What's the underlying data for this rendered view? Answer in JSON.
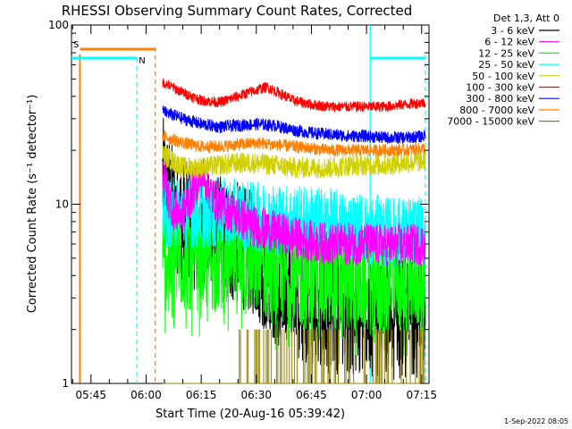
{
  "chart_data": {
    "type": "line",
    "title": "RHESSI Observing Summary Count Rates, Corrected",
    "xlabel": "Start Time (20-Aug-16 05:39:42)",
    "ylabel": "Corrected Count Rate (s⁻¹ detector⁻¹)",
    "yscale": "log",
    "ylim": [
      1,
      100
    ],
    "xlim_minutes": [
      39.7,
      137
    ],
    "ytick_labels": [
      "1",
      "10",
      "100"
    ],
    "xtick_labels": [
      "05:45",
      "06:00",
      "06:15",
      "06:30",
      "06:45",
      "07:00",
      "07:15"
    ],
    "xtick_minutes": [
      45,
      60,
      75,
      90,
      105,
      120,
      135
    ],
    "legend_header": "Det 1,3, Att 0",
    "legend_position": "outside-right",
    "series": [
      {
        "name": "3 - 6 keV",
        "color": "#000000",
        "data_start_min": 64.5,
        "data_end_min": 136,
        "points": [
          [
            64.5,
            14
          ],
          [
            67,
            10
          ],
          [
            70,
            8
          ],
          [
            75,
            7
          ],
          [
            80,
            6.5
          ],
          [
            85,
            6
          ],
          [
            89,
            5.3
          ],
          [
            92,
            4.5
          ],
          [
            96,
            3.5
          ],
          [
            100,
            3
          ],
          [
            105,
            2.7
          ],
          [
            110,
            2.5
          ],
          [
            115,
            2.5
          ],
          [
            120,
            2.5
          ],
          [
            125,
            2.3
          ],
          [
            130,
            2.3
          ],
          [
            136,
            2.4
          ]
        ],
        "noise": 0.35
      },
      {
        "name": "6 - 12 keV",
        "color": "#ff00ff",
        "data_start_min": 64.5,
        "data_end_min": 136,
        "points": [
          [
            64.5,
            15
          ],
          [
            66,
            11
          ],
          [
            68,
            9
          ],
          [
            70,
            9
          ],
          [
            72,
            11
          ],
          [
            74,
            13.5
          ],
          [
            75.5,
            14.5
          ],
          [
            77,
            12.5
          ],
          [
            78,
            11
          ],
          [
            80,
            10
          ],
          [
            85,
            8.5
          ],
          [
            90,
            7.5
          ],
          [
            95,
            7
          ],
          [
            100,
            6.5
          ],
          [
            105,
            6.2
          ],
          [
            110,
            6
          ],
          [
            115,
            6
          ],
          [
            120,
            6
          ],
          [
            125,
            5.9
          ],
          [
            130,
            5.9
          ],
          [
            136,
            6
          ]
        ],
        "noise": 0.12
      },
      {
        "name": "12 - 25 keV",
        "color": "#00ff00",
        "data_start_min": 64.5,
        "data_end_min": 136,
        "points": [
          [
            64.5,
            5
          ],
          [
            70,
            5
          ],
          [
            75,
            5
          ],
          [
            80,
            4.9
          ],
          [
            85,
            4.8
          ],
          [
            90,
            4.6
          ],
          [
            95,
            4.2
          ],
          [
            100,
            4
          ],
          [
            105,
            3.9
          ],
          [
            110,
            3.8
          ],
          [
            115,
            3.8
          ],
          [
            120,
            3.7
          ],
          [
            125,
            3.7
          ],
          [
            130,
            3.7
          ],
          [
            136,
            3.8
          ]
        ],
        "noise": 0.3
      },
      {
        "name": "25 - 50 keV",
        "color": "#00ffff",
        "data_start_min": 64.5,
        "data_end_min": 136,
        "points": [
          [
            64.5,
            9
          ],
          [
            70,
            9
          ],
          [
            75,
            9
          ],
          [
            80,
            9
          ],
          [
            85,
            8.8
          ],
          [
            90,
            8.5
          ],
          [
            95,
            8.3
          ],
          [
            100,
            8.2
          ],
          [
            105,
            8
          ],
          [
            110,
            7.8
          ],
          [
            115,
            7.5
          ],
          [
            120,
            7.3
          ],
          [
            125,
            7
          ],
          [
            130,
            7
          ],
          [
            136,
            7
          ]
        ],
        "noise": 0.2
      },
      {
        "name": "50 - 100 keV",
        "color": "#d0d000",
        "data_start_min": 64.5,
        "data_end_min": 136,
        "points": [
          [
            64.5,
            19
          ],
          [
            70,
            16
          ],
          [
            75,
            16
          ],
          [
            80,
            16.5
          ],
          [
            85,
            17
          ],
          [
            90,
            17
          ],
          [
            95,
            16.5
          ],
          [
            100,
            16
          ],
          [
            105,
            16
          ],
          [
            110,
            16
          ],
          [
            115,
            16.5
          ],
          [
            120,
            16.5
          ],
          [
            125,
            16.5
          ],
          [
            130,
            17
          ],
          [
            136,
            17.5
          ]
        ],
        "noise": 0.06
      },
      {
        "name": "100 - 300 keV",
        "color": "#ff0000",
        "data_start_min": 64.5,
        "data_end_min": 136,
        "points": [
          [
            64.5,
            48
          ],
          [
            70,
            42
          ],
          [
            75,
            38
          ],
          [
            80,
            37
          ],
          [
            85,
            40
          ],
          [
            88,
            42
          ],
          [
            91,
            44
          ],
          [
            93,
            45
          ],
          [
            96,
            42
          ],
          [
            100,
            38
          ],
          [
            105,
            36
          ],
          [
            110,
            35
          ],
          [
            115,
            35
          ],
          [
            120,
            35
          ],
          [
            125,
            35
          ],
          [
            130,
            36
          ],
          [
            136,
            37
          ]
        ],
        "noise": 0.03
      },
      {
        "name": "300 - 800 keV",
        "color": "#0000ff",
        "data_start_min": 64.5,
        "data_end_min": 136,
        "points": [
          [
            64.5,
            33
          ],
          [
            70,
            30
          ],
          [
            75,
            28
          ],
          [
            80,
            27
          ],
          [
            85,
            27.5
          ],
          [
            90,
            28
          ],
          [
            95,
            27.5
          ],
          [
            100,
            26
          ],
          [
            105,
            25
          ],
          [
            110,
            24.5
          ],
          [
            115,
            24
          ],
          [
            120,
            24
          ],
          [
            125,
            23.5
          ],
          [
            130,
            23.5
          ],
          [
            136,
            24
          ]
        ],
        "noise": 0.035
      },
      {
        "name": "800 - 7000 keV",
        "color": "#ff8000",
        "data_start_min": 64.5,
        "data_end_min": 136,
        "points": [
          [
            64.5,
            24
          ],
          [
            70,
            22
          ],
          [
            75,
            21
          ],
          [
            80,
            21
          ],
          [
            85,
            21.5
          ],
          [
            90,
            22
          ],
          [
            95,
            21.5
          ],
          [
            100,
            21
          ],
          [
            105,
            20.5
          ],
          [
            110,
            20
          ],
          [
            115,
            20
          ],
          [
            120,
            20
          ],
          [
            125,
            20
          ],
          [
            130,
            20
          ],
          [
            136,
            20.5
          ]
        ],
        "noise": 0.035
      },
      {
        "name": "7000 - 15000 keV",
        "color": "#908000",
        "data_start_min": 64.5,
        "data_end_min": 136,
        "points": [
          [
            64.5,
            1
          ],
          [
            136,
            1
          ]
        ],
        "noise": 0
      }
    ],
    "annotations": {
      "saa_flag_label": "S",
      "night_flag_label": "N",
      "flag_level": 75
    }
  },
  "footer": {
    "date_stamp": "1-Sep-2022 08:05"
  }
}
